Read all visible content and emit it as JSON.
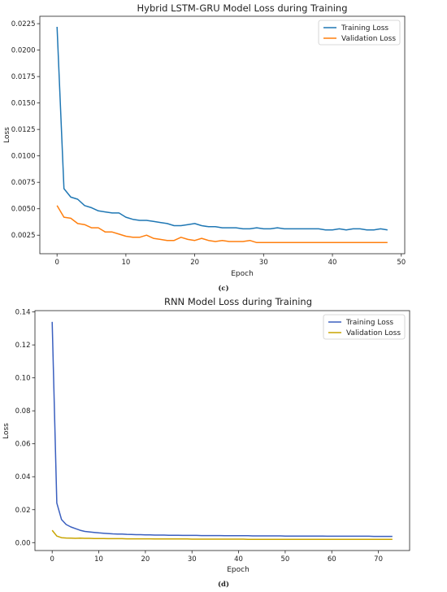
{
  "chart_data": [
    {
      "type": "line",
      "title": "Hybrid LSTM-GRU Model Loss during Training",
      "xlabel": "Epoch",
      "ylabel": "Loss",
      "caption": "(c)",
      "xlim": [
        -2.5,
        50.5
      ],
      "ylim": [
        0.00075,
        0.0232
      ],
      "xticks": [
        0,
        10,
        20,
        30,
        40,
        50
      ],
      "yticks": [
        0.0025,
        0.005,
        0.0075,
        0.01,
        0.0125,
        0.015,
        0.0175,
        0.02,
        0.0225
      ],
      "ytick_labels": [
        "0.0025",
        "0.0050",
        "0.0075",
        "0.0100",
        "0.0125",
        "0.0150",
        "0.0175",
        "0.0200",
        "0.0225"
      ],
      "legend": "top-right",
      "grid": false,
      "series": [
        {
          "name": "Training Loss",
          "color": "#1f77b4",
          "x": [
            0,
            1,
            2,
            3,
            4,
            5,
            6,
            7,
            8,
            9,
            10,
            11,
            12,
            13,
            14,
            15,
            16,
            17,
            18,
            19,
            20,
            21,
            22,
            23,
            24,
            25,
            26,
            27,
            28,
            29,
            30,
            31,
            32,
            33,
            34,
            35,
            36,
            37,
            38,
            39,
            40,
            41,
            42,
            43,
            44,
            45,
            46,
            47,
            48
          ],
          "values": [
            0.0222,
            0.0069,
            0.0061,
            0.0059,
            0.0053,
            0.0051,
            0.0048,
            0.0047,
            0.0046,
            0.0046,
            0.0042,
            0.004,
            0.0039,
            0.0039,
            0.0038,
            0.0037,
            0.0036,
            0.0034,
            0.0034,
            0.0035,
            0.0036,
            0.0034,
            0.0033,
            0.0033,
            0.0032,
            0.0032,
            0.0032,
            0.0031,
            0.0031,
            0.0032,
            0.0031,
            0.0031,
            0.0032,
            0.0031,
            0.0031,
            0.0031,
            0.0031,
            0.0031,
            0.0031,
            0.003,
            0.003,
            0.0031,
            0.003,
            0.0031,
            0.0031,
            0.003,
            0.003,
            0.0031,
            0.003
          ]
        },
        {
          "name": "Validation Loss",
          "color": "#ff7f0e",
          "x": [
            0,
            1,
            2,
            3,
            4,
            5,
            6,
            7,
            8,
            9,
            10,
            11,
            12,
            13,
            14,
            15,
            16,
            17,
            18,
            19,
            20,
            21,
            22,
            23,
            24,
            25,
            26,
            27,
            28,
            29,
            30,
            31,
            32,
            33,
            34,
            35,
            36,
            37,
            38,
            39,
            40,
            41,
            42,
            43,
            44,
            45,
            46,
            47,
            48
          ],
          "values": [
            0.0053,
            0.0042,
            0.0041,
            0.0036,
            0.0035,
            0.0032,
            0.0032,
            0.0028,
            0.0028,
            0.0026,
            0.0024,
            0.0023,
            0.0023,
            0.0025,
            0.0022,
            0.0021,
            0.002,
            0.002,
            0.0023,
            0.0021,
            0.002,
            0.0022,
            0.002,
            0.0019,
            0.002,
            0.0019,
            0.0019,
            0.0019,
            0.002,
            0.0018,
            0.0018,
            0.0018,
            0.0018,
            0.0018,
            0.0018,
            0.0018,
            0.0018,
            0.0018,
            0.0018,
            0.0018,
            0.0018,
            0.0018,
            0.0018,
            0.0018,
            0.0018,
            0.0018,
            0.0018,
            0.0018,
            0.0018
          ]
        }
      ]
    },
    {
      "type": "line",
      "title": "RNN Model Loss during Training",
      "xlabel": "Epoch",
      "ylabel": "Loss",
      "caption": "(d)",
      "xlim": [
        -3.7,
        76.7
      ],
      "ylim": [
        -0.0048,
        0.1408
      ],
      "xticks": [
        0,
        10,
        20,
        30,
        40,
        50,
        60,
        70
      ],
      "yticks": [
        0.0,
        0.02,
        0.04,
        0.06,
        0.08,
        0.1,
        0.12,
        0.14
      ],
      "ytick_labels": [
        "0.00",
        "0.02",
        "0.04",
        "0.06",
        "0.08",
        "0.10",
        "0.12",
        "0.14"
      ],
      "legend": "top-right",
      "grid": false,
      "series": [
        {
          "name": "Training Loss",
          "color": "#3a5fbf",
          "x": [
            0,
            1,
            2,
            3,
            4,
            5,
            6,
            7,
            8,
            9,
            10,
            11,
            12,
            13,
            14,
            15,
            16,
            17,
            18,
            19,
            20,
            21,
            22,
            23,
            24,
            25,
            26,
            27,
            28,
            29,
            30,
            31,
            32,
            33,
            34,
            35,
            36,
            37,
            38,
            39,
            40,
            41,
            42,
            43,
            44,
            45,
            46,
            47,
            48,
            49,
            50,
            51,
            52,
            53,
            54,
            55,
            56,
            57,
            58,
            59,
            60,
            61,
            62,
            63,
            64,
            65,
            66,
            67,
            68,
            69,
            70,
            71,
            72,
            73
          ],
          "values": [
            0.134,
            0.024,
            0.014,
            0.011,
            0.0095,
            0.0085,
            0.0075,
            0.0068,
            0.0065,
            0.0062,
            0.0059,
            0.0057,
            0.0055,
            0.0053,
            0.0052,
            0.0052,
            0.005,
            0.0049,
            0.0048,
            0.0048,
            0.0047,
            0.0047,
            0.0046,
            0.0046,
            0.0046,
            0.0045,
            0.0045,
            0.0045,
            0.0044,
            0.0044,
            0.0044,
            0.0044,
            0.0043,
            0.0043,
            0.0043,
            0.0043,
            0.0043,
            0.0042,
            0.0042,
            0.0042,
            0.0042,
            0.0042,
            0.0042,
            0.0041,
            0.0041,
            0.0041,
            0.0041,
            0.0041,
            0.0041,
            0.0041,
            0.004,
            0.004,
            0.004,
            0.004,
            0.004,
            0.004,
            0.004,
            0.004,
            0.004,
            0.0039,
            0.0039,
            0.0039,
            0.0039,
            0.0039,
            0.0039,
            0.0039,
            0.0039,
            0.0039,
            0.0039,
            0.0038,
            0.0038,
            0.0038,
            0.0038,
            0.0038
          ]
        },
        {
          "name": "Validation Loss",
          "color": "#c8a400",
          "x": [
            0,
            1,
            2,
            3,
            4,
            5,
            6,
            7,
            8,
            9,
            10,
            11,
            12,
            13,
            14,
            15,
            16,
            17,
            18,
            19,
            20,
            21,
            22,
            23,
            24,
            25,
            26,
            27,
            28,
            29,
            30,
            31,
            32,
            33,
            34,
            35,
            36,
            37,
            38,
            39,
            40,
            41,
            42,
            43,
            44,
            45,
            46,
            47,
            48,
            49,
            50,
            51,
            52,
            53,
            54,
            55,
            56,
            57,
            58,
            59,
            60,
            61,
            62,
            63,
            64,
            65,
            66,
            67,
            68,
            69,
            70,
            71,
            72,
            73
          ],
          "values": [
            0.0075,
            0.004,
            0.003,
            0.0028,
            0.0027,
            0.0026,
            0.0027,
            0.0026,
            0.0026,
            0.0025,
            0.0025,
            0.0025,
            0.0024,
            0.0024,
            0.0024,
            0.0024,
            0.0023,
            0.0023,
            0.0023,
            0.0023,
            0.0023,
            0.0023,
            0.0022,
            0.0022,
            0.0022,
            0.0022,
            0.0022,
            0.0022,
            0.0022,
            0.0022,
            0.0021,
            0.0021,
            0.0021,
            0.0021,
            0.0021,
            0.0021,
            0.0021,
            0.0021,
            0.0021,
            0.0021,
            0.0021,
            0.0021,
            0.002,
            0.002,
            0.002,
            0.002,
            0.002,
            0.002,
            0.002,
            0.002,
            0.002,
            0.002,
            0.002,
            0.002,
            0.002,
            0.002,
            0.002,
            0.002,
            0.002,
            0.002,
            0.002,
            0.002,
            0.002,
            0.002,
            0.002,
            0.002,
            0.002,
            0.002,
            0.002,
            0.002,
            0.002,
            0.002,
            0.002,
            0.002
          ]
        }
      ]
    }
  ]
}
